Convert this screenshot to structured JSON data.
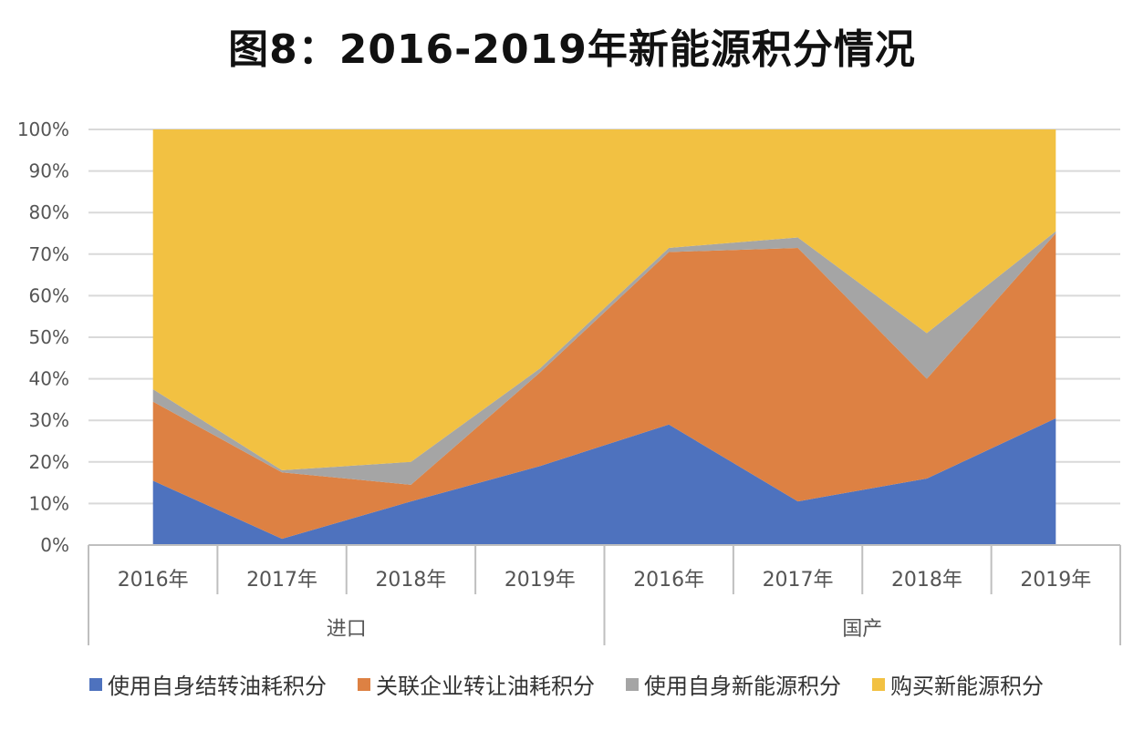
{
  "title": "图8：2016-2019年新能源积分情况",
  "chart_data": {
    "type": "area",
    "stacked": true,
    "percent": true,
    "categories": [
      "2016年",
      "2017年",
      "2018年",
      "2019年",
      "2016年",
      "2017年",
      "2018年",
      "2019年"
    ],
    "groups": [
      {
        "label": "进口",
        "start": 0,
        "end": 4
      },
      {
        "label": "国产",
        "start": 4,
        "end": 8
      }
    ],
    "yticks": [
      "0%",
      "10%",
      "20%",
      "30%",
      "40%",
      "50%",
      "60%",
      "70%",
      "80%",
      "90%",
      "100%"
    ],
    "ylim": [
      0,
      100
    ],
    "grid": true,
    "legend_position": "bottom",
    "series": [
      {
        "name": "使用自身结转油耗积分",
        "color": "#4e72be",
        "values": [
          15.5,
          1.5,
          10.5,
          19,
          29,
          10.5,
          16,
          30.5
        ]
      },
      {
        "name": "关联企业转让油耗积分",
        "color": "#dd8143",
        "values": [
          19,
          16,
          4,
          22.5,
          41.5,
          61,
          24,
          44.5
        ]
      },
      {
        "name": "使用自身新能源积分",
        "color": "#a5a5a5",
        "values": [
          3,
          0.5,
          5.5,
          1,
          1,
          2.5,
          11,
          0.5
        ]
      },
      {
        "name": "购买新能源积分",
        "color": "#f2c142",
        "values": [
          62.5,
          82,
          80,
          57.5,
          28.5,
          26,
          49,
          24.5
        ]
      }
    ]
  }
}
